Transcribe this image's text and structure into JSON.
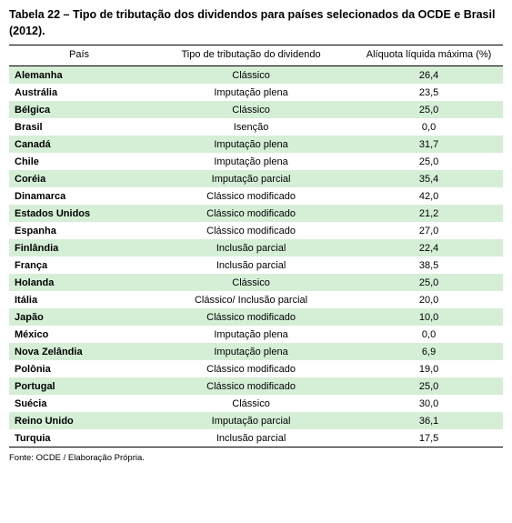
{
  "title": "Tabela 22 – Tipo de tributação dos dividendos para países selecionados da OCDE e Brasil (2012).",
  "columns": [
    "País",
    "Tipo de tributação do dividendo",
    "Alíquota líquida máxima (%)"
  ],
  "footnote": "Fonte: OCDE / Elaboração Própria.",
  "row_colors": {
    "odd": "#d5efd7",
    "even": "#ffffff"
  },
  "text_color": "#000000",
  "border_color": "#000000",
  "rows": [
    {
      "country": "Alemanha",
      "type": "Clássico",
      "rate": "26,4"
    },
    {
      "country": "Austrália",
      "type": "Imputação plena",
      "rate": "23,5"
    },
    {
      "country": "Bélgica",
      "type": "Clássico",
      "rate": "25,0"
    },
    {
      "country": "Brasil",
      "type": "Isenção",
      "rate": "0,0"
    },
    {
      "country": "Canadá",
      "type": "Imputação plena",
      "rate": "31,7"
    },
    {
      "country": "Chile",
      "type": "Imputação plena",
      "rate": "25,0"
    },
    {
      "country": "Coréia",
      "type": "Imputação parcial",
      "rate": "35,4"
    },
    {
      "country": "Dinamarca",
      "type": "Clássico modificado",
      "rate": "42,0"
    },
    {
      "country": "Estados Unidos",
      "type": "Clássico modificado",
      "rate": "21,2"
    },
    {
      "country": "Espanha",
      "type": "Clássico modificado",
      "rate": "27,0"
    },
    {
      "country": "Finlândia",
      "type": "Inclusão parcial",
      "rate": "22,4"
    },
    {
      "country": "França",
      "type": "Inclusão parcial",
      "rate": "38,5"
    },
    {
      "country": "Holanda",
      "type": "Clássico",
      "rate": "25,0"
    },
    {
      "country": "Itália",
      "type": "Clássico/ Inclusão parcial",
      "rate": "20,0"
    },
    {
      "country": "Japão",
      "type": "Clássico modificado",
      "rate": "10,0"
    },
    {
      "country": "México",
      "type": "Imputação plena",
      "rate": "0,0"
    },
    {
      "country": "Nova Zelândia",
      "type": "Imputação plena",
      "rate": "6,9"
    },
    {
      "country": "Polônia",
      "type": "Clássico modificado",
      "rate": "19,0"
    },
    {
      "country": "Portugal",
      "type": "Clássico modificado",
      "rate": "25,0"
    },
    {
      "country": "Suécia",
      "type": "Clássico",
      "rate": "30,0"
    },
    {
      "country": "Reino Unido",
      "type": "Imputação parcial",
      "rate": "36,1"
    },
    {
      "country": "Turquia",
      "type": "Inclusão parcial",
      "rate": "17,5"
    }
  ]
}
